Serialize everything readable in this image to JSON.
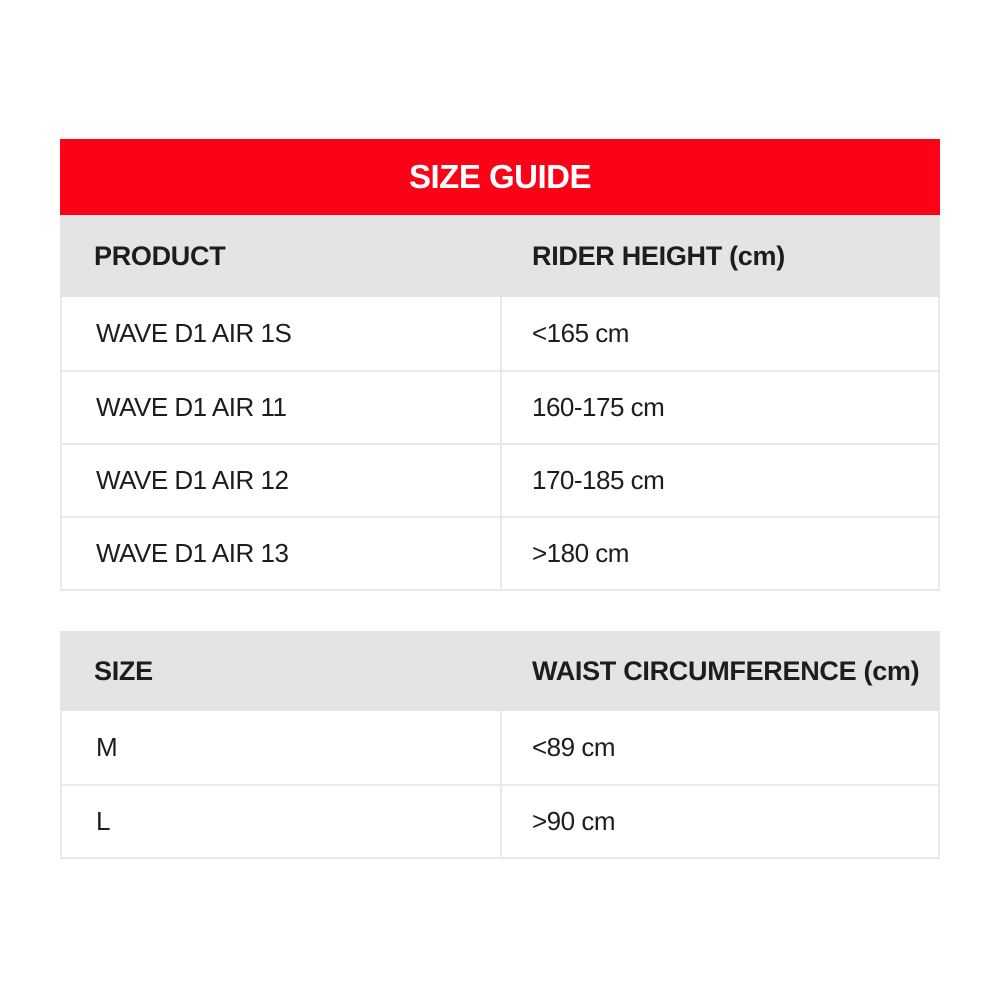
{
  "title": {
    "text": "SIZE GUIDE"
  },
  "colors": {
    "accent_red": "#fb0217",
    "header_gray": "#e4e4e4",
    "border_gray": "#e9e9e9",
    "text_black": "#1d1d1b",
    "title_text_white": "#ffffff"
  },
  "tables": [
    {
      "name": "rider-height-table",
      "headers": [
        "PRODUCT",
        "RIDER HEIGHT (cm)"
      ],
      "rows": [
        [
          "WAVE D1 AIR 1S",
          "<165 cm"
        ],
        [
          "WAVE D1 AIR 11",
          "160-175 cm"
        ],
        [
          "WAVE D1 AIR 12",
          "170-185 cm"
        ],
        [
          "WAVE D1 AIR 13",
          ">180 cm"
        ]
      ]
    },
    {
      "name": "waist-circumference-table",
      "headers": [
        "SIZE",
        "WAIST CIRCUMFERENCE (cm)"
      ],
      "rows": [
        [
          "M",
          "<89 cm"
        ],
        [
          "L",
          ">90 cm"
        ]
      ]
    }
  ],
  "chart_data": [
    {
      "type": "table",
      "title": "SIZE GUIDE",
      "columns": [
        "PRODUCT",
        "RIDER HEIGHT (cm)"
      ],
      "rows": [
        [
          "WAVE D1 AIR 1S",
          "<165 cm"
        ],
        [
          "WAVE D1 AIR 11",
          "160-175 cm"
        ],
        [
          "WAVE D1 AIR 12",
          "170-185 cm"
        ],
        [
          "WAVE D1 AIR 13",
          ">180 cm"
        ]
      ]
    },
    {
      "type": "table",
      "columns": [
        "SIZE",
        "WAIST CIRCUMFERENCE (cm)"
      ],
      "rows": [
        [
          "M",
          "<89 cm"
        ],
        [
          "L",
          ">90 cm"
        ]
      ]
    }
  ]
}
